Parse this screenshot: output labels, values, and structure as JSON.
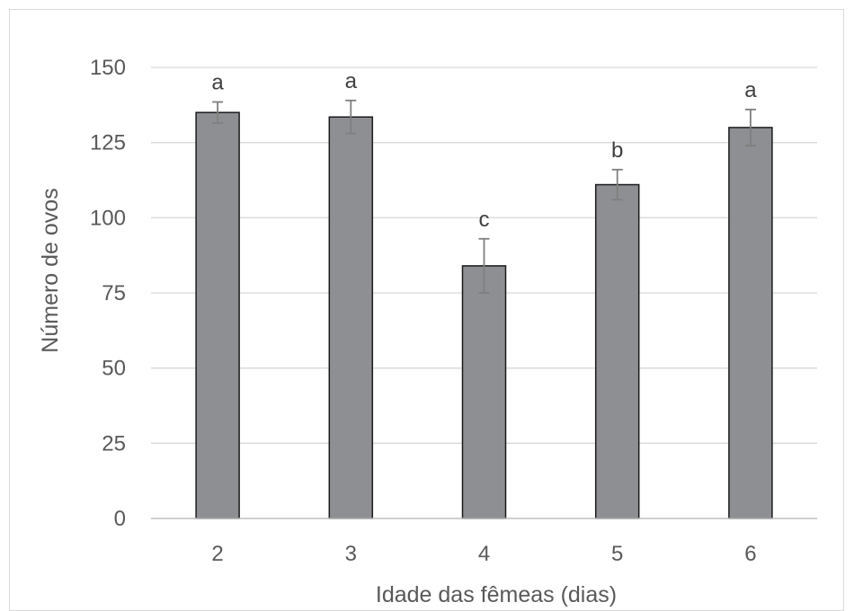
{
  "chart_data": {
    "type": "bar",
    "title": "",
    "xlabel": "Idade das fêmeas (dias)",
    "ylabel": "Número de ovos",
    "categories": [
      "2",
      "3",
      "4",
      "5",
      "6"
    ],
    "values": [
      135,
      133.5,
      84,
      111,
      130
    ],
    "error": [
      3.5,
      5.5,
      9,
      5,
      6
    ],
    "data_labels": [
      "a",
      "a",
      "c",
      "b",
      "a"
    ],
    "ylim": [
      0,
      150
    ],
    "yticks": [
      0,
      25,
      50,
      75,
      100,
      125,
      150
    ],
    "grid": true,
    "legend": "none",
    "colors": {
      "bar_fill": "#8e8f93",
      "bar_stroke": "#1a1a1a",
      "error_bar": "#7f7f7f",
      "gridline": "#d9d9d9",
      "axis_line": "#bfbfbf"
    }
  }
}
